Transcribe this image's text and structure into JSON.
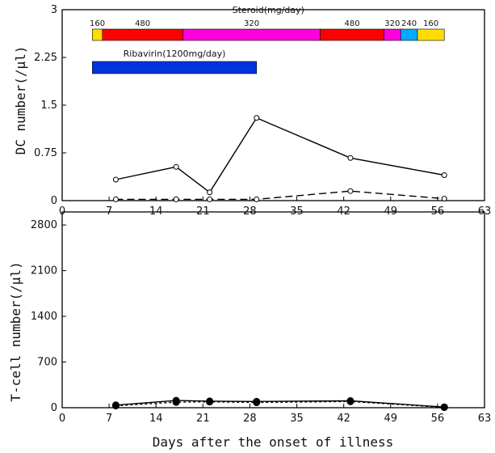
{
  "chart_data": [
    {
      "type": "line",
      "ylabel": "DC number(/μl)",
      "xlim": [
        0,
        63
      ],
      "ylim": [
        0,
        3
      ],
      "xticks": [
        0,
        7,
        14,
        21,
        28,
        35,
        42,
        49,
        56,
        63
      ],
      "yticks": [
        {
          "value": 0,
          "label": "0"
        },
        {
          "value": 0.75,
          "label": "0.75"
        },
        {
          "value": 1.5,
          "label": "1.5"
        },
        {
          "value": 2.25,
          "label": "2.25"
        },
        {
          "value": 3,
          "label": "3"
        }
      ],
      "series": [
        {
          "style": "solid",
          "marker": "open-circle",
          "x": [
            8,
            17,
            22,
            29,
            43,
            57
          ],
          "y": [
            0.33,
            0.53,
            0.13,
            1.3,
            0.67,
            0.4
          ]
        },
        {
          "style": "dashed",
          "marker": "open-circle",
          "x": [
            8,
            17,
            22,
            29,
            43,
            57
          ],
          "y": [
            0.02,
            0.02,
            0.02,
            0.02,
            0.15,
            0.03
          ]
        }
      ],
      "annotations": {
        "steroid_title": "Steroid(mg/day)",
        "steroid_segments": [
          {
            "start": 4.5,
            "end": 6,
            "color": "#ffdd00",
            "label": "160"
          },
          {
            "start": 6,
            "end": 18,
            "color": "#ff0000",
            "label": "480"
          },
          {
            "start": 18,
            "end": 38.5,
            "color": "#ff00dd",
            "label": "320"
          },
          {
            "start": 38.5,
            "end": 48,
            "color": "#ff0000",
            "label": "480"
          },
          {
            "start": 48,
            "end": 50.5,
            "color": "#ff00dd",
            "label": "320"
          },
          {
            "start": 50.5,
            "end": 53,
            "color": "#00aaff",
            "label": "240"
          },
          {
            "start": 53,
            "end": 57,
            "color": "#ffdd00",
            "label": "160"
          }
        ],
        "ribavirin_label": "Ribavirin(1200mg/day)",
        "ribavirin_range": [
          4.5,
          29
        ],
        "ribavirin_color": "#0033dd"
      }
    },
    {
      "type": "line",
      "ylabel": "T-cell number(/μl)",
      "xlabel": "Days after the onset of illness",
      "xlim": [
        0,
        63
      ],
      "ylim": [
        0,
        3000
      ],
      "xticks": [
        0,
        7,
        14,
        21,
        28,
        35,
        42,
        49,
        56,
        63
      ],
      "yticks": [
        {
          "value": 0,
          "label": "0"
        },
        {
          "value": 700,
          "label": "700"
        },
        {
          "value": 1400,
          "label": "1400"
        },
        {
          "value": 2100,
          "label": "2100"
        },
        {
          "value": 2800,
          "label": "2800"
        }
      ],
      "series": [
        {
          "style": "solid",
          "marker": "filled-circle",
          "x": [
            8,
            17,
            22,
            29,
            43,
            57
          ],
          "y": [
            40,
            110,
            100,
            95,
            105,
            10
          ]
        },
        {
          "style": "dotted",
          "marker": "filled-circle",
          "x": [
            8,
            17,
            22,
            29,
            43,
            57
          ],
          "y": [
            30,
            85,
            90,
            80,
            95,
            5
          ]
        }
      ]
    }
  ]
}
